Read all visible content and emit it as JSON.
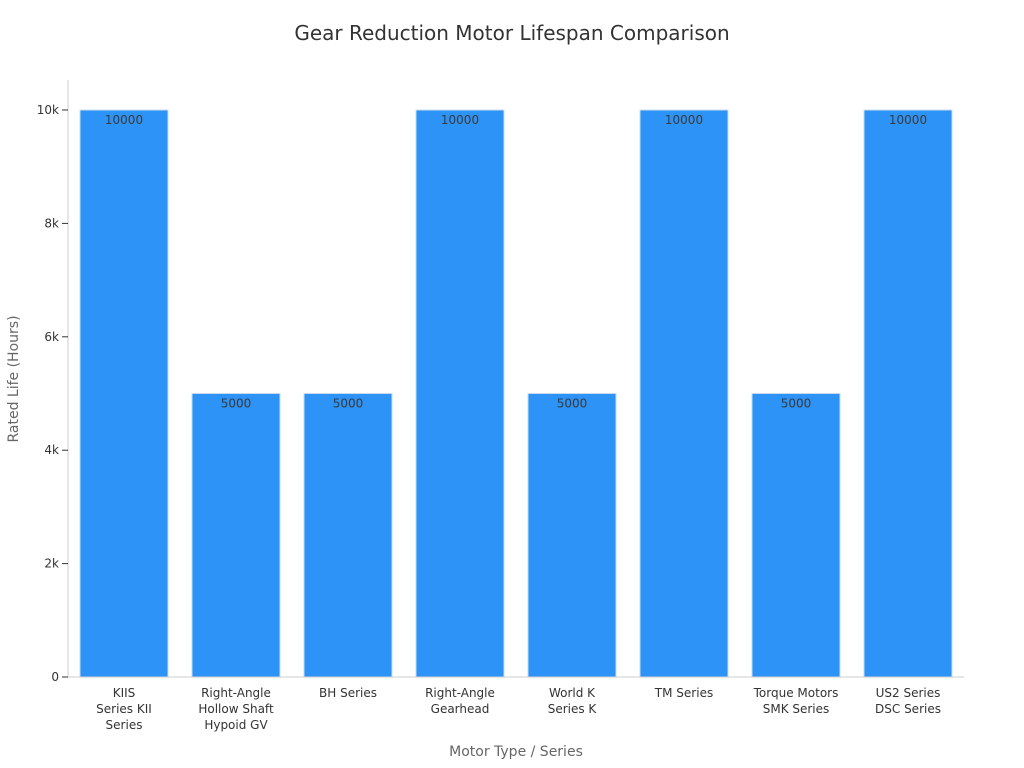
{
  "chart_data": {
    "type": "bar",
    "title": "Gear Reduction Motor Lifespan Comparison",
    "xlabel": "Motor Type / Series",
    "ylabel": "Rated Life (Hours)",
    "categories": [
      [
        "KIIS",
        "Series KII",
        "Series"
      ],
      [
        "Right-Angle",
        "Hollow Shaft",
        "Hypoid GV"
      ],
      [
        "BH Series"
      ],
      [
        "Right-Angle",
        "Gearhead"
      ],
      [
        "World K",
        "Series K"
      ],
      [
        "TM Series"
      ],
      [
        "Torque Motors",
        "SMK Series"
      ],
      [
        "US2 Series",
        "DSC Series"
      ]
    ],
    "values": [
      10000,
      5000,
      5000,
      10000,
      5000,
      10000,
      5000,
      10000
    ],
    "data_labels": [
      "10000",
      "5000",
      "5000",
      "10000",
      "5000",
      "10000",
      "5000",
      "10000"
    ],
    "ylim": [
      0,
      10500
    ],
    "yticks": [
      0,
      2000,
      4000,
      6000,
      8000,
      10000
    ],
    "ytick_labels": [
      "0",
      "2k",
      "4k",
      "6k",
      "8k",
      "10k"
    ],
    "bar_color": "#2d93f7",
    "grid": false,
    "legend": "none"
  }
}
